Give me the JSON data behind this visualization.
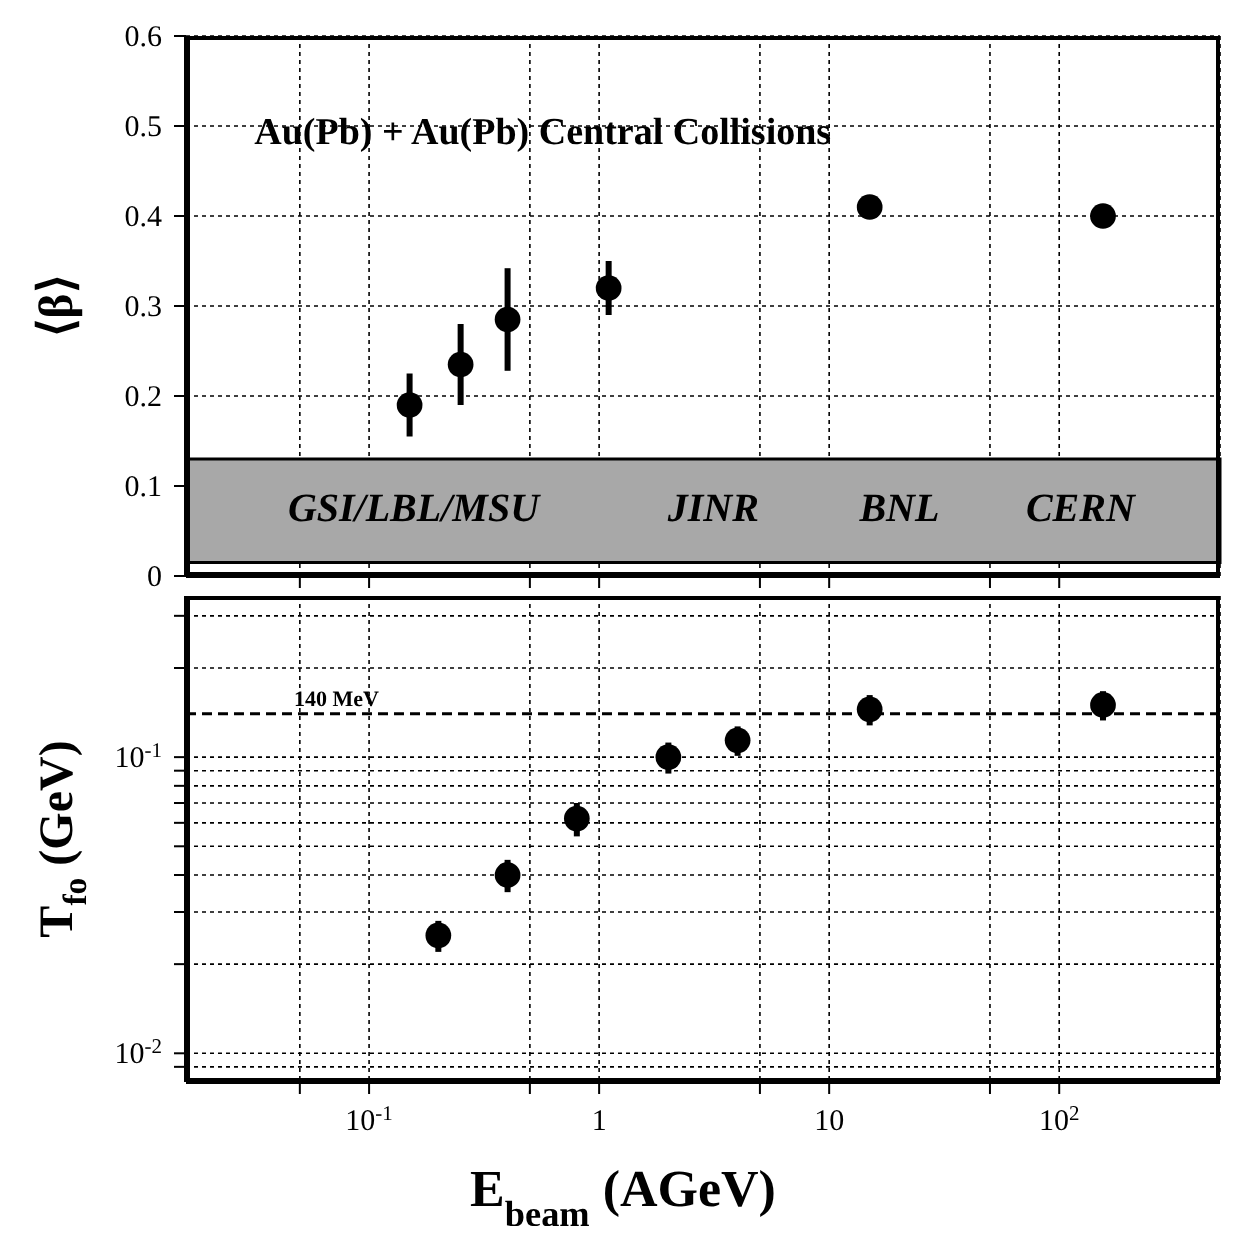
{
  "chart_data": [
    {
      "type": "scatter",
      "title": "Au(Pb) + Au(Pb) Central Collisions",
      "ylabel": "⟨β⟩",
      "x": [
        0.15,
        0.25,
        0.4,
        1.1,
        15,
        155
      ],
      "values": [
        0.19,
        0.235,
        0.285,
        0.32,
        0.41,
        0.4
      ],
      "errors": [
        0.035,
        0.045,
        0.057,
        0.03,
        null,
        null
      ],
      "color": "#000000",
      "marker": "circle",
      "log": "x",
      "xlim": [
        0.016,
        500
      ],
      "xticks": [
        {
          "value": 0.05,
          "label": null
        },
        {
          "value": 0.1,
          "label": null
        },
        {
          "value": 0.5,
          "label": null
        },
        {
          "value": 1,
          "label": null
        },
        {
          "value": 5,
          "label": null
        },
        {
          "value": 10,
          "label": null
        },
        {
          "value": 50,
          "label": null
        },
        {
          "value": 100,
          "label": null
        }
      ],
      "ylim": [
        0,
        0.6
      ],
      "yticks": [
        0,
        0.1,
        0.2,
        0.3,
        0.4,
        0.5,
        0.6
      ],
      "grid": true,
      "tick_labels": "y",
      "bands": [
        {
          "axis": "y",
          "from": 0.015,
          "to": 0.13,
          "color": "#a8a8a8"
        }
      ],
      "annotations": [
        "GSI/LBL/MSU",
        "JINR",
        "BNL",
        "CERN"
      ]
    },
    {
      "type": "scatter",
      "ylabel": "T$_{fo}$ (GeV)",
      "xlabel": "E$_{beam}$ (AGeV)",
      "x": [
        0.2,
        0.4,
        0.8,
        2,
        4,
        15,
        155
      ],
      "values": [
        0.025,
        0.04,
        0.062,
        0.1,
        0.114,
        0.145,
        0.15
      ],
      "errors": [
        0.003,
        0.005,
        0.008,
        0.012,
        0.013,
        0.017,
        0.017
      ],
      "color": "#000000",
      "marker": "circle",
      "log": "xy",
      "xlim": [
        0.016,
        500
      ],
      "xticks": [
        {
          "value": 0.05,
          "label": null
        },
        {
          "value": 0.1,
          "label": "10$^{-1}$"
        },
        {
          "value": 0.5,
          "label": null
        },
        1,
        {
          "value": 5,
          "label": null
        },
        10,
        {
          "value": 50,
          "label": null
        },
        {
          "value": 100,
          "label": "10$^{2}$"
        }
      ],
      "ylim": [
        0.008,
        0.35
      ],
      "yticks": [
        {
          "value": 0.009,
          "label": null
        },
        {
          "value": 0.01,
          "label": "10$^{-2}$"
        },
        {
          "value": 0.02,
          "label": null
        },
        {
          "value": 0.03,
          "label": null
        },
        {
          "value": 0.04,
          "label": null
        },
        {
          "value": 0.05,
          "label": null
        },
        {
          "value": 0.06,
          "label": null
        },
        {
          "value": 0.07,
          "label": null
        },
        {
          "value": 0.08,
          "label": null
        },
        {
          "value": 0.09,
          "label": null
        },
        {
          "value": 0.1,
          "label": "10$^{-1}$"
        },
        {
          "value": 0.2,
          "label": null
        },
        {
          "value": 0.3,
          "label": null
        }
      ],
      "grid": true,
      "ref_lines": [
        {
          "axis": "y",
          "value": 0.14,
          "label": "140 MeV",
          "line_style": "dashed"
        }
      ]
    }
  ]
}
